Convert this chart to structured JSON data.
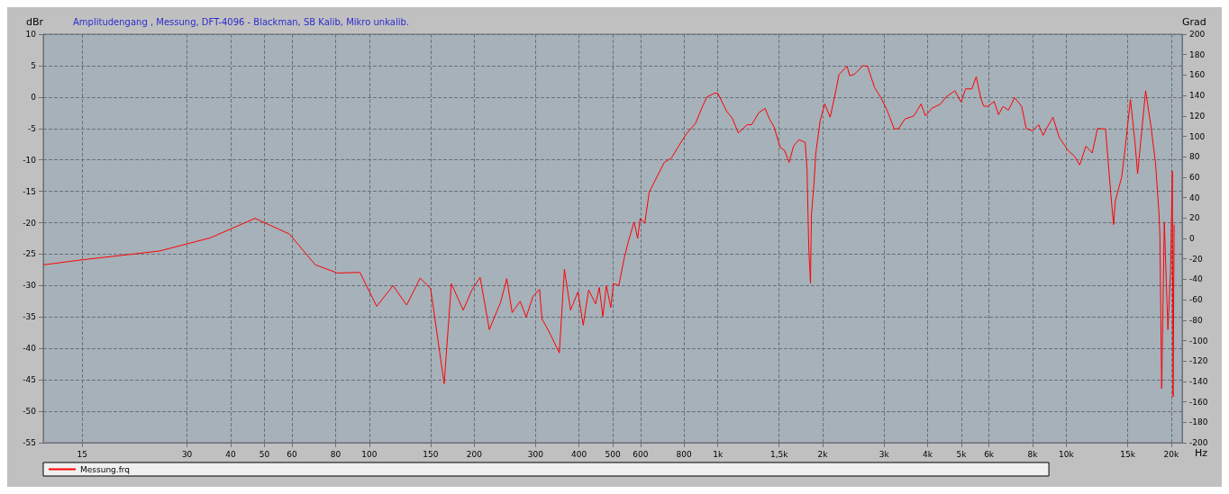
{
  "chart_data": {
    "type": "line",
    "title": "Amplitudengang , Messung, DFT-4096 - Blackman, SB Kalib, Mikro unkalib.",
    "xlabel": "Hz",
    "ylabel": "dBr",
    "y2label": "Grad",
    "log": "x",
    "grid": true,
    "legend": "bottom left",
    "marker": "none",
    "line_style": "solid",
    "xlim": [
      11.6,
      21500
    ],
    "ylim": [
      -55,
      10
    ],
    "y2lim": [
      -200,
      200
    ],
    "xticks": [
      15,
      30,
      40,
      50,
      60,
      80,
      100,
      150,
      200,
      300,
      400,
      500,
      600,
      800,
      {
        "value": 1000,
        "label": "1k"
      },
      {
        "value": 1500,
        "label": "1,5k"
      },
      {
        "value": 2000,
        "label": "2k"
      },
      {
        "value": 3000,
        "label": "3k"
      },
      {
        "value": 4000,
        "label": "4k"
      },
      {
        "value": 5000,
        "label": "5k"
      },
      {
        "value": 6000,
        "label": "6k"
      },
      {
        "value": 8000,
        "label": "8k"
      },
      {
        "value": 10000,
        "label": "10k"
      },
      {
        "value": 15000,
        "label": "15k"
      },
      {
        "value": 20000,
        "label": "20k"
      }
    ],
    "yticks": [
      -55,
      -50,
      -45,
      -40,
      -35,
      -30,
      -25,
      -20,
      -15,
      -10,
      -5,
      0,
      5,
      10
    ],
    "y2ticks": [
      -200,
      -180,
      -160,
      -140,
      -120,
      -100,
      -80,
      -60,
      -40,
      -20,
      0,
      20,
      40,
      60,
      80,
      100,
      120,
      140,
      160,
      180,
      200
    ],
    "series": [
      {
        "name": "Messung.frq",
        "color": "#ff0000",
        "x": [
          11.6,
          15,
          25,
          35,
          47,
          59,
          70,
          81,
          94,
          105,
          117,
          128,
          140,
          150,
          164,
          172,
          186,
          197,
          208,
          221,
          238,
          248,
          257,
          271,
          282,
          295,
          308,
          313,
          327,
          351,
          363,
          378,
          397,
          411,
          426,
          446,
          457,
          468,
          479,
          493,
          502,
          520,
          539,
          555,
          575,
          589,
          599,
          617,
          636,
          662,
          702,
          736,
          772,
          814,
          863,
          905,
          931,
          977,
          1000,
          1061,
          1099,
          1145,
          1215,
          1251,
          1311,
          1367,
          1407,
          1449,
          1510,
          1555,
          1602,
          1650,
          1709,
          1781,
          1803,
          1824,
          1845,
          1856,
          1889,
          1911,
          1968,
          2027,
          2101,
          2163,
          2228,
          2349,
          2391,
          2462,
          2612,
          2689,
          2818,
          2938,
          3061,
          3209,
          3305,
          3444,
          3653,
          3830,
          3944,
          4110,
          4359,
          4515,
          4789,
          4991,
          5140,
          5357,
          5515,
          5682,
          5783,
          5955,
          6206,
          6391,
          6583,
          6821,
          7108,
          7448,
          7673,
          7993,
          8331,
          8580,
          8837,
          9155,
          9540,
          10118,
          10544,
          10925,
          11387,
          11866,
          12292,
          12960,
          13428,
          13666,
          13828,
          14411,
          14666,
          15281,
          15738,
          16019,
          16891,
          17500,
          18025,
          18450,
          18560,
          18780,
          19110,
          19570,
          19920,
          20150,
          20250,
          20390
        ],
        "values": [
          -26.7,
          -25.9,
          -24.5,
          -22.4,
          -19.3,
          -21.8,
          -26.7,
          -28.0,
          -27.9,
          -33.3,
          -30.0,
          -33.1,
          -28.8,
          -30.5,
          -45.6,
          -29.7,
          -33.9,
          -30.7,
          -28.7,
          -37.0,
          -32.7,
          -28.9,
          -34.3,
          -32.5,
          -35.0,
          -31.7,
          -30.6,
          -35.3,
          -37.2,
          -40.7,
          -27.4,
          -33.9,
          -31.0,
          -36.3,
          -30.7,
          -32.9,
          -30.3,
          -34.9,
          -30.0,
          -33.5,
          -29.7,
          -30.0,
          -25.6,
          -22.8,
          -19.9,
          -22.5,
          -19.3,
          -20.1,
          -15.1,
          -13.2,
          -10.4,
          -9.7,
          -7.8,
          -5.8,
          -4.2,
          -1.4,
          0.0,
          0.6,
          0.6,
          -2.3,
          -3.3,
          -5.7,
          -4.4,
          -4.4,
          -2.5,
          -1.8,
          -3.5,
          -4.7,
          -8.0,
          -8.5,
          -10.4,
          -7.8,
          -6.8,
          -7.2,
          -11.4,
          -23.9,
          -29.6,
          -18.9,
          -13.6,
          -8.9,
          -3.7,
          -1.1,
          -3.2,
          0.0,
          3.6,
          4.9,
          3.4,
          3.6,
          5.0,
          4.9,
          1.5,
          -0.1,
          -2.1,
          -5.1,
          -5.0,
          -3.5,
          -3.0,
          -1.1,
          -3.0,
          -1.8,
          -1.1,
          0.0,
          1.0,
          -0.8,
          1.3,
          1.3,
          3.2,
          -0.1,
          -1.4,
          -1.5,
          -0.7,
          -2.8,
          -1.5,
          -2.1,
          -0.1,
          -1.5,
          -5.0,
          -5.4,
          -4.4,
          -6.1,
          -4.7,
          -3.2,
          -6.4,
          -8.5,
          -9.4,
          -10.8,
          -7.8,
          -8.9,
          -5.0,
          -5.1,
          -15.6,
          -20.3,
          -16.5,
          -12.8,
          -9.4,
          -0.4,
          -7.1,
          -12.2,
          1.0,
          -4.7,
          -10.4,
          -18.5,
          -22.2,
          -46.4,
          -19.9,
          -37.0,
          -27.5,
          -11.8,
          -47.7,
          -20.3
        ]
      }
    ]
  }
}
